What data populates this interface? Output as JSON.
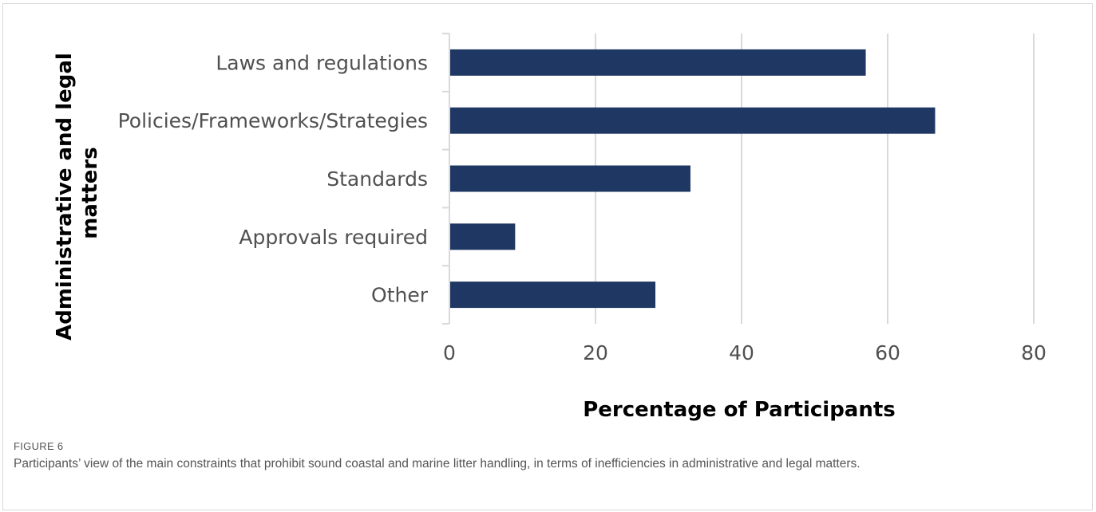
{
  "figure": {
    "label": "FIGURE 6",
    "caption": "Participants’ view of the main constraints that prohibit sound coastal and marine litter handling, in terms of inefficiencies in administrative and legal matters."
  },
  "chart_data": {
    "type": "bar",
    "orientation": "horizontal",
    "categories": [
      "Laws and regulations",
      "Policies/Frameworks/Strategies",
      "Standards",
      "Approvals required",
      "Other"
    ],
    "values": [
      57,
      66.5,
      33,
      9,
      28.2
    ],
    "xlabel": "Percentage of Participants",
    "ylabel_lines": [
      "Administrative and legal",
      "matters"
    ],
    "xlim": [
      0,
      80
    ],
    "xticks": [
      "0",
      "20",
      "40",
      "60",
      "80"
    ],
    "grid": "vertical",
    "bar_color": "#1f3763"
  }
}
